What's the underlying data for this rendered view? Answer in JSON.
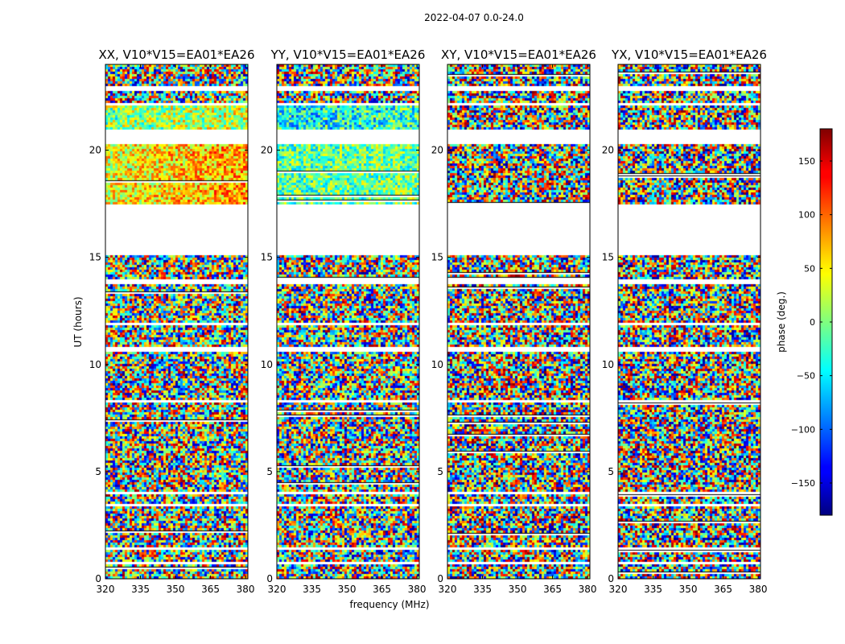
{
  "chart_data": {
    "type": "heatmap",
    "suptitle": "2022-04-07 0.0-24.0",
    "xlabel": "frequency (MHz)",
    "ylabel": "UT (hours)",
    "xlim": [
      320,
      381
    ],
    "ylim": [
      0,
      24
    ],
    "xticks": [
      320,
      335,
      350,
      365,
      380
    ],
    "yticks": [
      0,
      5,
      10,
      15,
      20
    ],
    "panels": [
      {
        "title": "XX, V10*V15=EA01*EA26",
        "mode": "xx"
      },
      {
        "title": "YY, V10*V15=EA01*EA26",
        "mode": "yy"
      },
      {
        "title": "XY, V10*V15=EA01*EA26",
        "mode": "cross"
      },
      {
        "title": "YX, V10*V15=EA01*EA26",
        "mode": "cross"
      }
    ],
    "flagged_gaps_hours": [
      [
        0.75,
        0.82
      ],
      [
        1.45,
        1.52
      ],
      [
        3.45,
        3.55
      ],
      [
        4.05,
        4.12
      ],
      [
        8.25,
        8.35
      ],
      [
        10.7,
        10.85
      ],
      [
        11.85,
        11.95
      ],
      [
        13.85,
        14.05
      ],
      [
        15.15,
        17.55
      ],
      [
        20.35,
        21.05
      ],
      [
        22.1,
        22.25
      ],
      [
        22.85,
        23.05
      ]
    ],
    "colorbar": {
      "label": "phase (deg.)",
      "range": [
        -180,
        180
      ],
      "ticks": [
        -150,
        -100,
        -50,
        0,
        50,
        100,
        150
      ],
      "tick_labels": [
        "−150",
        "−100",
        "−50",
        "0",
        "50",
        "100",
        "150"
      ],
      "colormap": "jet"
    }
  }
}
